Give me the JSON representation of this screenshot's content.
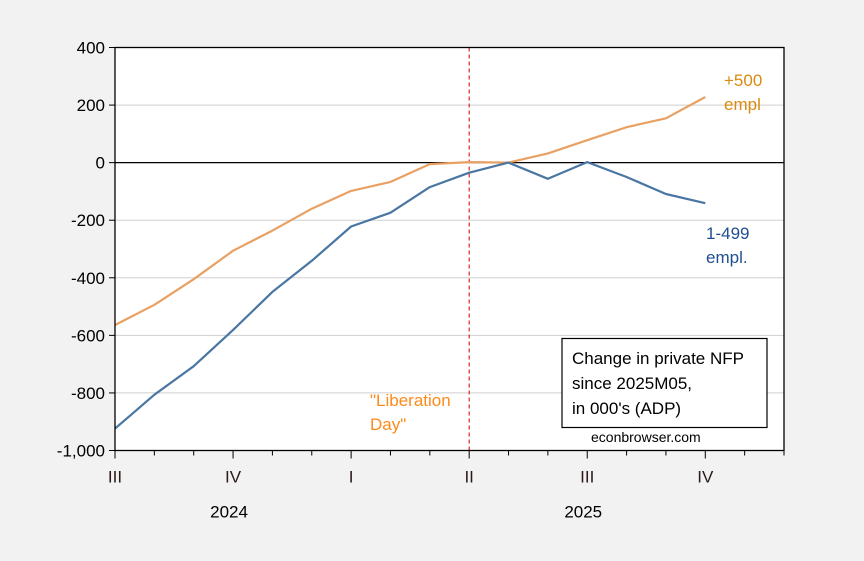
{
  "chart_data": {
    "type": "line",
    "title": "",
    "xlabel": "",
    "ylabel": "",
    "x": [
      "2024M07",
      "2024M08",
      "2024M09",
      "2024M10",
      "2024M11",
      "2024M12",
      "2025M01",
      "2025M02",
      "2025M03",
      "2025M04",
      "2025M05",
      "2025M06",
      "2025M07",
      "2025M08",
      "2025M09",
      "2025M10"
    ],
    "xlim": [
      "2024M07",
      "2025M12"
    ],
    "ylim": [
      -1000,
      400
    ],
    "yticks": [
      400,
      200,
      0,
      -200,
      -400,
      -600,
      -800,
      -1000
    ],
    "ytick_labels": [
      "400",
      "200",
      "0",
      "-200",
      "-400",
      "-600",
      "-800",
      "-1,000"
    ],
    "xtick_labels": [
      {
        "label": "III",
        "month": "2024M07"
      },
      {
        "label": "IV",
        "month": "2024M10"
      },
      {
        "label": "I",
        "month": "2025M01"
      },
      {
        "label": "II",
        "month": "2025M04"
      },
      {
        "label": "III",
        "month": "2025M07"
      },
      {
        "label": "IV",
        "month": "2025M10"
      }
    ],
    "year_labels": [
      {
        "label": "2024",
        "month": "2024M10"
      },
      {
        "label": "2025",
        "month": "2025M07"
      }
    ],
    "grid": true,
    "series": [
      {
        "name": "+500 empl",
        "color": "#e8a163",
        "label_color": "#d98a10",
        "values": [
          -564,
          -494,
          -405,
          -306,
          -236,
          -160,
          -98,
          -67,
          -5,
          2,
          0,
          32,
          78,
          123,
          154,
          228
        ]
      },
      {
        "name": "1-499 empl.",
        "color": "#4a76a3",
        "label_color": "#1f4f8f",
        "values": [
          -924,
          -806,
          -707,
          -581,
          -449,
          -341,
          -222,
          -174,
          -85,
          -35,
          0,
          -56,
          2,
          -50,
          -109,
          -141
        ]
      }
    ],
    "series_labels": [
      {
        "lines": [
          "+500",
          "empl"
        ]
      },
      {
        "lines": [
          "1-499",
          "empl."
        ]
      }
    ],
    "vline": {
      "month": "2025M04",
      "color": "#d00000",
      "style": "dashed"
    },
    "annotation": {
      "lines": [
        "\"Liberation",
        "Day\""
      ],
      "color": "#ff8a1a"
    },
    "legend_box": {
      "lines": [
        "Change in private NFP",
        "since 2025M05,",
        "in 000's (ADP)"
      ]
    },
    "source": "econbrowser.com"
  }
}
